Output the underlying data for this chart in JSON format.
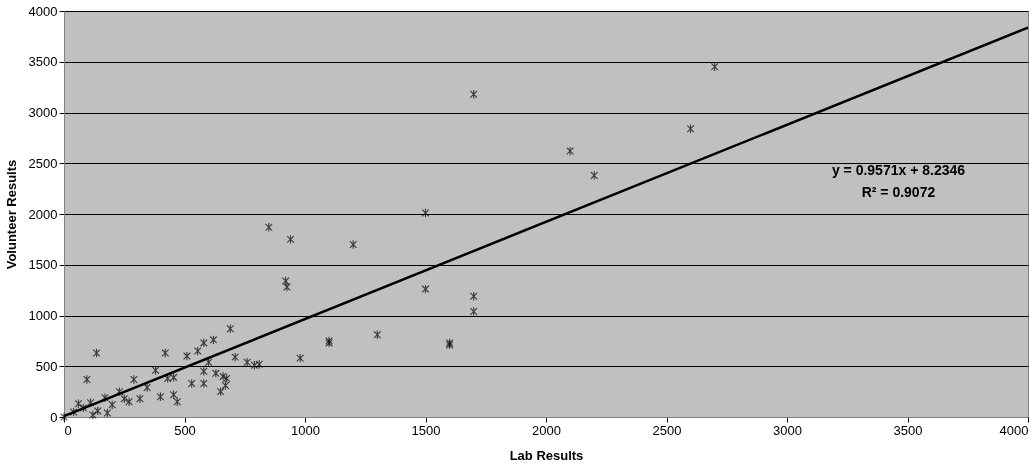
{
  "chart_data": {
    "type": "scatter",
    "xlabel": "Lab Results",
    "ylabel": "Volunteer Results",
    "xlim": [
      0,
      4000
    ],
    "xticks": [
      0,
      500,
      1000,
      1500,
      2000,
      2500,
      3000,
      3500,
      4000
    ],
    "ylim": [
      0,
      4000
    ],
    "yticks": [
      0,
      500,
      1000,
      1500,
      2000,
      2500,
      3000,
      3500,
      4000
    ],
    "grid": "y",
    "marker": "cross",
    "annotations": [
      "y = 0.9571x + 8.2346",
      "R² = 0.9072"
    ],
    "series": [
      {
        "color": "#000000",
        "x": [
          1700,
          2700,
          2600,
          2100,
          2200,
          1500,
          850,
          940,
          1200,
          920,
          925,
          1500,
          1700,
          1700,
          1300,
          1100,
          1100,
          1600,
          1600,
          980,
          135,
          95,
          420,
          290,
          380,
          510,
          555,
          580,
          620,
          690,
          710,
          760,
          790,
          810,
          600,
          580,
          530,
          580,
          630,
          660,
          675,
          670,
          650,
          400,
          455,
          470,
          430,
          455,
          315,
          270,
          345,
          0,
          40,
          80,
          110,
          140,
          170,
          200,
          230,
          250,
          120,
          180,
          60
        ],
        "values": [
          3180,
          3450,
          2840,
          2620,
          2380,
          2010,
          1870,
          1750,
          1700,
          1340,
          1280,
          1260,
          1190,
          1040,
          810,
          750,
          730,
          730,
          710,
          580,
          630,
          370,
          630,
          370,
          460,
          600,
          650,
          730,
          760,
          870,
          590,
          540,
          510,
          520,
          540,
          450,
          330,
          330,
          430,
          400,
          380,
          310,
          250,
          200,
          220,
          150,
          380,
          390,
          180,
          150,
          290,
          0,
          50,
          90,
          140,
          60,
          190,
          120,
          250,
          180,
          20,
          40,
          130
        ]
      },
      {
        "type": "line",
        "marker": "none",
        "color": "#000000",
        "x": [
          0,
          4000
        ],
        "values": [
          8,
          3837
        ]
      }
    ]
  }
}
